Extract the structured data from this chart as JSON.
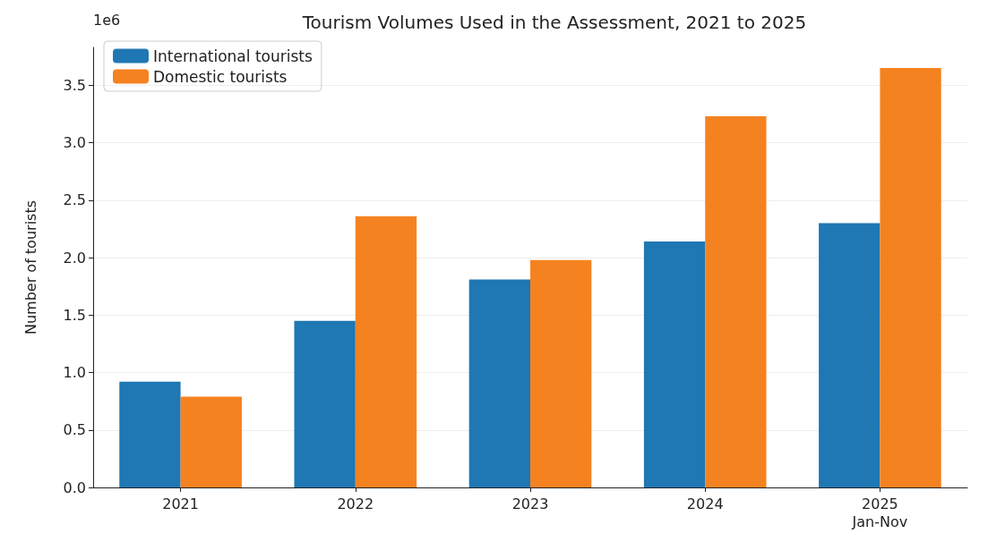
{
  "chart_data": {
    "type": "bar",
    "title": "Tourism Volumes Used in the Assessment, 2021 to 2025",
    "ylabel": "Number of tourists",
    "annotations": [
      "1e6"
    ],
    "categories": [
      "2021",
      "2022",
      "2023",
      "2024",
      "2025\nJan-Nov"
    ],
    "series": [
      {
        "name": "International tourists",
        "color": "#1f77b4",
        "values": [
          0.92,
          1.45,
          1.81,
          2.14,
          2.3
        ]
      },
      {
        "name": "Domestic tourists",
        "color": "#f58220",
        "values": [
          0.79,
          2.36,
          1.98,
          3.23,
          3.65
        ]
      }
    ],
    "ylim": [
      0,
      3.83
    ],
    "yticks": [
      {
        "value": 0,
        "label": "0.0"
      },
      0.5,
      {
        "value": 1,
        "label": "1.0"
      },
      1.5,
      {
        "value": 2,
        "label": "2.0"
      },
      2.5,
      {
        "value": 3,
        "label": "3.0"
      },
      3.5
    ],
    "grid": "y",
    "legend": "top left"
  }
}
